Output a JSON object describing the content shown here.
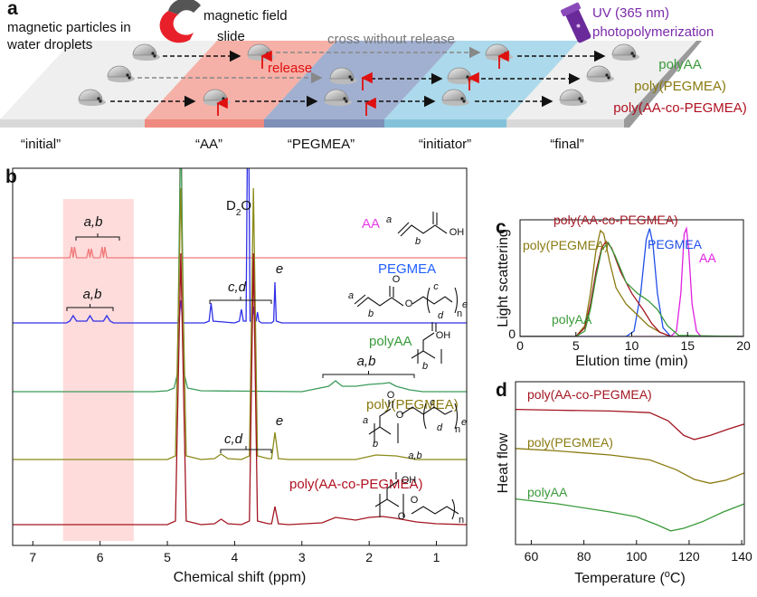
{
  "panel_a": {
    "label": "a",
    "source_text": [
      "magnetic particles in",
      "water droplets"
    ],
    "magnet_text": [
      "magnetic field",
      "slide"
    ],
    "release": "release",
    "cross": "cross without release",
    "uv": [
      "UV (365 nm)",
      "photopolymerization"
    ],
    "products": [
      {
        "text": "polyAA",
        "color": "#3a9a3a"
      },
      {
        "text": "poly(PEGMEA)",
        "color": "#8a7a10"
      },
      {
        "text": "poly(AA-co-PEGMEA)",
        "color": "#b01020"
      }
    ],
    "stations": [
      "“initial”",
      "“AA”",
      "“PEGMEA”",
      "“initiator”",
      "“final”"
    ]
  },
  "chart_data": [
    {
      "panel_label": "b",
      "type": "line",
      "xlabel": "Chemical shift (ppm)",
      "xlim": [
        7.3,
        0.55
      ],
      "xticks": [
        7,
        6,
        5,
        4,
        3,
        2,
        1
      ],
      "highlight": [
        6.55,
        5.5
      ],
      "solvent_label": [
        "D",
        "2",
        "O"
      ],
      "annotations": [
        "a,b",
        "a,b",
        "c,d",
        "e",
        "a,b",
        "c,d",
        "e"
      ],
      "structures": [
        [
          "a",
          "b",
          "OH"
        ],
        [
          "a",
          "b",
          "O",
          "O",
          "c",
          "d",
          "n",
          "e"
        ],
        [
          "b",
          "OH"
        ],
        [
          "a",
          "b",
          "O",
          "O",
          "c",
          "d",
          "n",
          "e",
          "a,b"
        ],
        [
          "OH",
          "O",
          "O",
          "n"
        ]
      ],
      "series": [
        {
          "name": "AA",
          "color": "#f07878",
          "label_color": "#e83ce8",
          "x": [
            7.3,
            6.5,
            6.45,
            6.42,
            6.4,
            6.38,
            6.35,
            6.2,
            6.17,
            6.15,
            6.13,
            6.1,
            6.0,
            5.97,
            5.95,
            5.93,
            5.9,
            4.9,
            4.82,
            4.8,
            4.78,
            4.7,
            0.55
          ],
          "values": [
            0,
            0,
            0,
            12,
            0,
            12,
            0,
            0,
            10,
            0,
            10,
            0,
            0,
            12,
            0,
            12,
            0,
            0,
            0,
            300,
            0,
            0,
            0
          ]
        },
        {
          "name": "PEGMEA",
          "color": "#3030e8",
          "label_color": "#1f5fff",
          "x": [
            7.3,
            6.5,
            6.45,
            6.4,
            6.35,
            6.2,
            6.15,
            6.1,
            5.95,
            5.9,
            5.85,
            5.8,
            4.9,
            4.83,
            4.8,
            4.77,
            4.45,
            4.38,
            4.35,
            4.32,
            4.0,
            3.93,
            3.9,
            3.87,
            3.83,
            3.8,
            3.77,
            3.74,
            3.72,
            3.7,
            3.68,
            3.66,
            3.64,
            3.6,
            3.45,
            3.42,
            3.4,
            3.38,
            3.3,
            0.55
          ],
          "values": [
            0,
            0,
            2,
            8,
            2,
            2,
            8,
            2,
            2,
            8,
            2,
            0,
            0,
            0,
            25,
            0,
            0,
            2,
            22,
            2,
            0,
            2,
            15,
            2,
            2,
            300,
            2,
            2,
            18,
            2,
            2,
            12,
            2,
            0,
            0,
            2,
            45,
            2,
            0,
            0
          ]
        },
        {
          "name": "polyAA",
          "color": "#3a9a5a",
          "label_color": "#3a9a3a",
          "x": [
            7.3,
            5.2,
            5.0,
            4.9,
            4.85,
            4.8,
            4.75,
            4.7,
            4.5,
            3.0,
            2.6,
            2.5,
            2.4,
            2.2,
            2.0,
            1.8,
            1.7,
            1.6,
            1.4,
            1.2,
            0.55
          ],
          "values": [
            0,
            0,
            1,
            4,
            20,
            300,
            20,
            4,
            1,
            0,
            6,
            12,
            6,
            6,
            8,
            9,
            10,
            6,
            2,
            0,
            0
          ]
        },
        {
          "name": "poly(PEGMEA)",
          "color": "#8a8a1a",
          "label_color": "#8a7a10",
          "x": [
            7.3,
            5.0,
            4.88,
            4.8,
            4.72,
            4.5,
            4.3,
            4.2,
            4.1,
            3.9,
            3.78,
            3.72,
            3.66,
            3.5,
            3.45,
            3.4,
            3.35,
            3.2,
            2.2,
            1.9,
            1.6,
            1.3,
            0.55
          ],
          "values": [
            0,
            0,
            4,
            300,
            4,
            0,
            1,
            6,
            1,
            0,
            4,
            300,
            4,
            1,
            1,
            30,
            1,
            0,
            0,
            5,
            4,
            0,
            0
          ]
        },
        {
          "name": "poly(AA-co-PEGMEA)",
          "color": "#a31621",
          "label_color": "#b01020",
          "x": [
            7.3,
            5.0,
            4.88,
            4.8,
            4.72,
            4.5,
            4.3,
            4.2,
            4.1,
            3.9,
            3.78,
            3.72,
            3.66,
            3.5,
            3.45,
            3.4,
            3.35,
            3.2,
            2.7,
            2.5,
            2.2,
            2.0,
            1.8,
            1.6,
            1.3,
            1.0,
            0.55
          ],
          "values": [
            0,
            0,
            4,
            300,
            4,
            0,
            1,
            6,
            1,
            0,
            4,
            300,
            4,
            1,
            1,
            20,
            1,
            0,
            2,
            8,
            5,
            8,
            9,
            7,
            3,
            1,
            0
          ]
        }
      ]
    },
    {
      "panel_label": "c",
      "type": "line",
      "xlabel": "Elution time (min)",
      "ylabel": "Light scattering",
      "xlim": [
        0,
        20
      ],
      "xticks": [
        0,
        5,
        10,
        15,
        20
      ],
      "ylim": [
        0,
        1.08
      ],
      "yticks": [
        0
      ],
      "series": [
        {
          "name": "AA",
          "color": "#e020e0",
          "x": [
            0,
            13.5,
            14.0,
            14.4,
            14.7,
            14.9,
            15.1,
            15.4,
            15.8,
            16.2,
            20
          ],
          "values": [
            0,
            0,
            0.05,
            0.4,
            0.95,
            1.0,
            0.8,
            0.3,
            0.05,
            0,
            0
          ]
        },
        {
          "name": "PEGMEA",
          "color": "#1f4fe8",
          "x": [
            0,
            9.5,
            10.2,
            10.8,
            11.3,
            11.6,
            11.9,
            12.3,
            12.8,
            13.5,
            20
          ],
          "values": [
            0,
            0,
            0.05,
            0.4,
            0.9,
            1.0,
            0.85,
            0.4,
            0.08,
            0,
            0
          ]
        },
        {
          "name": "poly(PEGMEA)",
          "color": "#8a7a10",
          "x": [
            0,
            5,
            5.8,
            6.3,
            6.8,
            7.2,
            7.5,
            8,
            8.6,
            9.5,
            10.5,
            11.5,
            12.5,
            13.5,
            20
          ],
          "values": [
            0,
            0,
            0.1,
            0.4,
            0.8,
            0.98,
            0.95,
            0.7,
            0.45,
            0.3,
            0.2,
            0.1,
            0.04,
            0,
            0
          ]
        },
        {
          "name": "poly(AA-co-PEGMEA)",
          "color": "#a31621",
          "x": [
            0,
            5,
            5.8,
            6.3,
            6.8,
            7.3,
            7.7,
            8.2,
            9,
            10,
            11,
            11.8,
            12.5,
            13.5,
            20
          ],
          "values": [
            0,
            0,
            0.08,
            0.3,
            0.6,
            0.82,
            0.88,
            0.82,
            0.6,
            0.4,
            0.25,
            0.12,
            0.04,
            0,
            0
          ]
        },
        {
          "name": "polyAA",
          "color": "#3a9a3a",
          "x": [
            0,
            5,
            5.8,
            6.3,
            6.8,
            7.3,
            7.9,
            8.5,
            9.5,
            10.5,
            11.5,
            12.3,
            13.2,
            14.2,
            20
          ],
          "values": [
            0,
            0,
            0.05,
            0.25,
            0.55,
            0.8,
            0.87,
            0.75,
            0.5,
            0.4,
            0.33,
            0.25,
            0.1,
            0.01,
            0
          ]
        }
      ]
    },
    {
      "panel_label": "d",
      "type": "line",
      "xlabel": [
        "Temperature (",
        "o",
        "C)"
      ],
      "ylabel": "Heat flow",
      "xlim": [
        54,
        141
      ],
      "xticks": [
        60,
        80,
        100,
        120,
        140
      ],
      "ylim": [
        0,
        100
      ],
      "series": [
        {
          "name": "poly(AA-co-PEGMEA)",
          "color": "#a31621",
          "x": [
            54,
            70,
            90,
            105,
            112,
            118,
            122,
            128,
            135,
            141
          ],
          "values": [
            83,
            82.5,
            82,
            81,
            76,
            67,
            64.5,
            67,
            71,
            74
          ]
        },
        {
          "name": "poly(PEGMEA)",
          "color": "#8a7a10",
          "x": [
            54,
            70,
            90,
            105,
            115,
            122,
            128,
            134,
            141
          ],
          "values": [
            59,
            57.5,
            55,
            52,
            46,
            40,
            37.6,
            39.5,
            44
          ]
        },
        {
          "name": "polyAA",
          "color": "#3a9a3a",
          "x": [
            54,
            70,
            90,
            100,
            108,
            113,
            118,
            125,
            133,
            141
          ],
          "values": [
            28,
            25,
            20,
            17,
            12,
            8.4,
            10,
            14,
            20,
            25
          ]
        }
      ]
    }
  ]
}
